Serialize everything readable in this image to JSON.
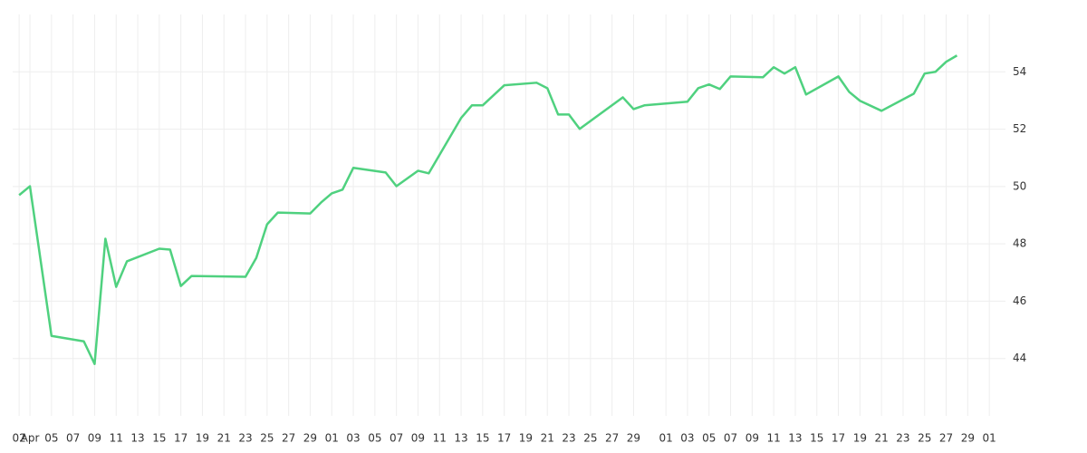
{
  "chart_data": {
    "type": "line",
    "x": [
      0,
      1,
      3,
      6,
      7,
      8,
      9,
      10,
      13,
      14,
      15,
      16,
      21,
      22,
      23,
      24,
      27,
      28,
      29,
      30,
      31,
      34,
      35,
      37,
      38,
      41,
      42,
      43,
      45,
      48,
      49,
      50,
      51,
      52,
      56,
      57,
      58,
      62,
      63,
      64,
      65,
      66,
      69,
      70,
      71,
      72,
      73,
      76,
      77,
      78,
      80,
      83,
      84,
      85,
      86,
      87
    ],
    "series": [
      {
        "color": "#4fd17f",
        "values": [
          49.7,
          50.01,
          44.79,
          44.6,
          43.81,
          48.18,
          46.5,
          47.39,
          47.83,
          47.8,
          46.53,
          46.88,
          46.85,
          47.51,
          48.68,
          49.09,
          49.06,
          49.44,
          49.76,
          49.89,
          50.65,
          50.49,
          50.01,
          50.55,
          50.46,
          52.39,
          52.83,
          52.83,
          53.53,
          53.62,
          53.43,
          52.51,
          52.51,
          52.01,
          53.11,
          52.7,
          52.83,
          52.96,
          53.43,
          53.56,
          53.4,
          53.84,
          53.81,
          54.16,
          53.94,
          54.16,
          53.21,
          53.84,
          53.3,
          52.99,
          52.64,
          53.24,
          53.94,
          54.0,
          54.35,
          54.57
        ]
      }
    ],
    "xlim": [
      -0.6,
      91.5
    ],
    "xticks": [
      {
        "value": 0,
        "label": "02"
      },
      {
        "value": 1,
        "label": "Apr"
      },
      {
        "value": 3,
        "label": "05"
      },
      {
        "value": 5,
        "label": "07"
      },
      {
        "value": 7,
        "label": "09"
      },
      {
        "value": 9,
        "label": "11"
      },
      {
        "value": 11,
        "label": "13"
      },
      {
        "value": 13,
        "label": "15"
      },
      {
        "value": 15,
        "label": "17"
      },
      {
        "value": 17,
        "label": "19"
      },
      {
        "value": 19,
        "label": "21"
      },
      {
        "value": 21,
        "label": "23"
      },
      {
        "value": 23,
        "label": "25"
      },
      {
        "value": 25,
        "label": "27"
      },
      {
        "value": 27,
        "label": "29"
      },
      {
        "value": 29,
        "label": "01"
      },
      {
        "value": 31,
        "label": "03"
      },
      {
        "value": 33,
        "label": "05"
      },
      {
        "value": 35,
        "label": "07"
      },
      {
        "value": 37,
        "label": "09"
      },
      {
        "value": 39,
        "label": "11"
      },
      {
        "value": 41,
        "label": "13"
      },
      {
        "value": 43,
        "label": "15"
      },
      {
        "value": 45,
        "label": "17"
      },
      {
        "value": 47,
        "label": "19"
      },
      {
        "value": 49,
        "label": "21"
      },
      {
        "value": 51,
        "label": "23"
      },
      {
        "value": 53,
        "label": "25"
      },
      {
        "value": 55,
        "label": "27"
      },
      {
        "value": 57,
        "label": "29"
      },
      {
        "value": 60,
        "label": "01"
      },
      {
        "value": 62,
        "label": "03"
      },
      {
        "value": 64,
        "label": "05"
      },
      {
        "value": 66,
        "label": "07"
      },
      {
        "value": 68,
        "label": "09"
      },
      {
        "value": 70,
        "label": "11"
      },
      {
        "value": 72,
        "label": "13"
      },
      {
        "value": 74,
        "label": "15"
      },
      {
        "value": 76,
        "label": "17"
      },
      {
        "value": 78,
        "label": "19"
      },
      {
        "value": 80,
        "label": "21"
      },
      {
        "value": 82,
        "label": "23"
      },
      {
        "value": 84,
        "label": "25"
      },
      {
        "value": 86,
        "label": "27"
      },
      {
        "value": 88,
        "label": "29"
      },
      {
        "value": 90,
        "label": "01"
      }
    ],
    "ylim": [
      42,
      56
    ],
    "yticks": [
      44,
      46,
      48,
      50,
      52,
      54
    ],
    "grid": true
  }
}
